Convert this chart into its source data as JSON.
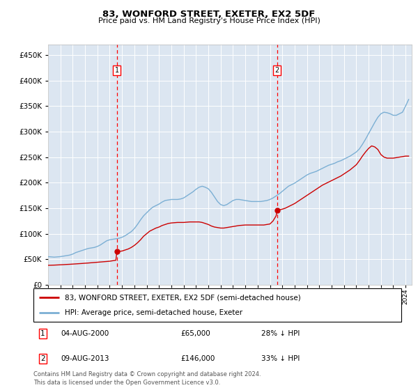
{
  "title": "83, WONFORD STREET, EXETER, EX2 5DF",
  "subtitle": "Price paid vs. HM Land Registry's House Price Index (HPI)",
  "ytick_values": [
    0,
    50000,
    100000,
    150000,
    200000,
    250000,
    300000,
    350000,
    400000,
    450000
  ],
  "ylim": [
    0,
    470000
  ],
  "xlim_start": 1995.0,
  "xlim_end": 2024.5,
  "plot_bg_color": "#dce6f1",
  "grid_color": "#ffffff",
  "red_line_color": "#cc0000",
  "blue_line_color": "#7bafd4",
  "annotation1": {
    "x": 2000.58,
    "label": "1",
    "date": "04-AUG-2000",
    "price": "£65,000",
    "pct": "28% ↓ HPI"
  },
  "annotation2": {
    "x": 2013.58,
    "label": "2",
    "date": "09-AUG-2013",
    "price": "£146,000",
    "pct": "33% ↓ HPI"
  },
  "legend_line1": "83, WONFORD STREET, EXETER, EX2 5DF (semi-detached house)",
  "legend_line2": "HPI: Average price, semi-detached house, Exeter",
  "footer": "Contains HM Land Registry data © Crown copyright and database right 2024.\nThis data is licensed under the Open Government Licence v3.0.",
  "hpi_x": [
    1995.0,
    1995.25,
    1995.5,
    1995.75,
    1996.0,
    1996.25,
    1996.5,
    1996.75,
    1997.0,
    1997.25,
    1997.5,
    1997.75,
    1998.0,
    1998.25,
    1998.5,
    1998.75,
    1999.0,
    1999.25,
    1999.5,
    1999.75,
    2000.0,
    2000.25,
    2000.5,
    2000.75,
    2001.0,
    2001.25,
    2001.5,
    2001.75,
    2002.0,
    2002.25,
    2002.5,
    2002.75,
    2003.0,
    2003.25,
    2003.5,
    2003.75,
    2004.0,
    2004.25,
    2004.5,
    2004.75,
    2005.0,
    2005.25,
    2005.5,
    2005.75,
    2006.0,
    2006.25,
    2006.5,
    2006.75,
    2007.0,
    2007.25,
    2007.5,
    2007.75,
    2008.0,
    2008.25,
    2008.5,
    2008.75,
    2009.0,
    2009.25,
    2009.5,
    2009.75,
    2010.0,
    2010.25,
    2010.5,
    2010.75,
    2011.0,
    2011.25,
    2011.5,
    2011.75,
    2012.0,
    2012.25,
    2012.5,
    2012.75,
    2013.0,
    2013.25,
    2013.5,
    2013.75,
    2014.0,
    2014.25,
    2014.5,
    2014.75,
    2015.0,
    2015.25,
    2015.5,
    2015.75,
    2016.0,
    2016.25,
    2016.5,
    2016.75,
    2017.0,
    2017.25,
    2017.5,
    2017.75,
    2018.0,
    2018.25,
    2018.5,
    2018.75,
    2019.0,
    2019.25,
    2019.5,
    2019.75,
    2020.0,
    2020.25,
    2020.5,
    2020.75,
    2021.0,
    2021.25,
    2021.5,
    2021.75,
    2022.0,
    2022.25,
    2022.5,
    2022.75,
    2023.0,
    2023.25,
    2023.5,
    2023.75,
    2024.0,
    2024.25
  ],
  "hpi_y": [
    55000,
    54500,
    54000,
    54500,
    55000,
    56000,
    57000,
    58000,
    60000,
    63000,
    65000,
    67000,
    69000,
    71000,
    72000,
    73000,
    75000,
    78000,
    82000,
    86000,
    88000,
    89000,
    90000,
    91000,
    93000,
    96000,
    100000,
    104000,
    110000,
    118000,
    127000,
    135000,
    141000,
    147000,
    152000,
    155000,
    158000,
    162000,
    165000,
    166000,
    167000,
    167000,
    167000,
    168000,
    170000,
    174000,
    178000,
    182000,
    187000,
    191000,
    193000,
    191000,
    188000,
    181000,
    172000,
    163000,
    157000,
    155000,
    157000,
    161000,
    165000,
    167000,
    167000,
    166000,
    165000,
    164000,
    163000,
    163000,
    163000,
    163000,
    164000,
    165000,
    167000,
    170000,
    174000,
    178000,
    183000,
    188000,
    193000,
    196000,
    199000,
    203000,
    207000,
    211000,
    215000,
    218000,
    220000,
    222000,
    225000,
    228000,
    231000,
    234000,
    236000,
    238000,
    241000,
    243000,
    246000,
    249000,
    252000,
    256000,
    260000,
    266000,
    275000,
    285000,
    296000,
    307000,
    318000,
    328000,
    335000,
    338000,
    337000,
    335000,
    332000,
    332000,
    335000,
    338000,
    350000,
    363000
  ],
  "red_x": [
    1995.0,
    1995.25,
    1995.5,
    1995.75,
    1996.0,
    1996.25,
    1996.5,
    1996.75,
    1997.0,
    1997.25,
    1997.5,
    1997.75,
    1998.0,
    1998.25,
    1998.5,
    1998.75,
    1999.0,
    1999.25,
    1999.5,
    1999.75,
    2000.0,
    2000.25,
    2000.5,
    2000.58,
    2001.0,
    2001.25,
    2001.5,
    2001.75,
    2002.0,
    2002.25,
    2002.5,
    2002.75,
    2003.0,
    2003.25,
    2003.5,
    2003.75,
    2004.0,
    2004.25,
    2004.5,
    2004.75,
    2005.0,
    2005.25,
    2005.5,
    2005.75,
    2006.0,
    2006.25,
    2006.5,
    2006.75,
    2007.0,
    2007.25,
    2007.5,
    2007.75,
    2008.0,
    2008.25,
    2008.5,
    2008.75,
    2009.0,
    2009.25,
    2009.5,
    2009.75,
    2010.0,
    2010.25,
    2010.5,
    2010.75,
    2011.0,
    2011.25,
    2011.5,
    2011.75,
    2012.0,
    2012.25,
    2012.5,
    2012.75,
    2013.0,
    2013.25,
    2013.5,
    2013.58,
    2014.0,
    2014.25,
    2014.5,
    2014.75,
    2015.0,
    2015.25,
    2015.5,
    2015.75,
    2016.0,
    2016.25,
    2016.5,
    2016.75,
    2017.0,
    2017.25,
    2017.5,
    2017.75,
    2018.0,
    2018.25,
    2018.5,
    2018.75,
    2019.0,
    2019.25,
    2019.5,
    2019.75,
    2020.0,
    2020.25,
    2020.5,
    2020.75,
    2021.0,
    2021.25,
    2021.5,
    2021.75,
    2022.0,
    2022.25,
    2022.5,
    2022.75,
    2023.0,
    2023.25,
    2023.5,
    2023.75,
    2024.0,
    2024.25
  ],
  "red_y": [
    38000,
    38200,
    38400,
    38700,
    39000,
    39300,
    39700,
    40000,
    40400,
    40800,
    41200,
    41600,
    42100,
    42500,
    43000,
    43500,
    44000,
    44500,
    45000,
    45500,
    46000,
    47000,
    48000,
    65000,
    66000,
    68000,
    70000,
    73000,
    77000,
    82000,
    88000,
    95000,
    100000,
    105000,
    108000,
    111000,
    113000,
    116000,
    118000,
    120000,
    121000,
    121500,
    122000,
    122000,
    122000,
    122500,
    123000,
    123000,
    123000,
    123000,
    122000,
    120000,
    118000,
    115000,
    113000,
    112000,
    111000,
    111000,
    112000,
    113000,
    114000,
    115000,
    116000,
    116500,
    117000,
    117000,
    117000,
    117000,
    117000,
    117000,
    117000,
    118000,
    119000,
    125000,
    135000,
    146000,
    148000,
    150000,
    153000,
    156000,
    159000,
    163000,
    167000,
    171000,
    175000,
    179000,
    183000,
    187000,
    191000,
    195000,
    198000,
    201000,
    204000,
    207000,
    210000,
    213000,
    217000,
    221000,
    225000,
    230000,
    235000,
    243000,
    252000,
    260000,
    267000,
    272000,
    270000,
    265000,
    255000,
    250000,
    248000,
    248000,
    248000,
    249000,
    250000,
    251000,
    252000,
    252000
  ]
}
